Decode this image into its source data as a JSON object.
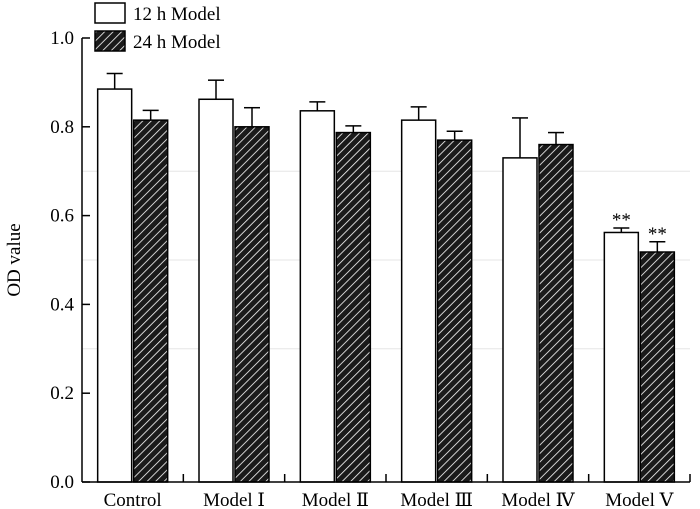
{
  "chart_data": {
    "type": "bar",
    "title": "",
    "xlabel": "",
    "ylabel": "OD value",
    "ylim": [
      0,
      1.0
    ],
    "yticks": [
      "0.0",
      "0.2",
      "0.4",
      "0.6",
      "0.8",
      "1.0"
    ],
    "categories": [
      "Control",
      "Model Ⅰ",
      "Model Ⅱ",
      "Model Ⅲ",
      "Model Ⅳ",
      "Model Ⅴ"
    ],
    "series": [
      {
        "name": "12 h Model",
        "values": [
          0.885,
          0.862,
          0.836,
          0.815,
          0.73,
          0.562
        ],
        "errors": [
          0.035,
          0.043,
          0.02,
          0.03,
          0.09,
          0.01
        ],
        "annotations": [
          "",
          "",
          "",
          "",
          "",
          "**"
        ],
        "fill": "#ffffff"
      },
      {
        "name": "24 h Model",
        "values": [
          0.815,
          0.8,
          0.787,
          0.77,
          0.76,
          0.518
        ],
        "errors": [
          0.022,
          0.043,
          0.015,
          0.02,
          0.027,
          0.023
        ],
        "annotations": [
          "",
          "",
          "",
          "",
          "",
          "**"
        ],
        "fill": "hatched"
      }
    ],
    "legend": {
      "position": "top-left"
    }
  }
}
